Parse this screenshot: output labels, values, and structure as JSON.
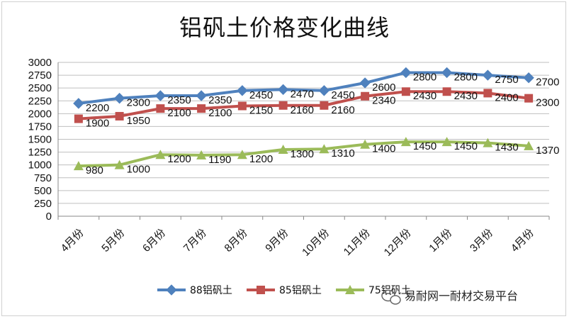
{
  "chart_data": {
    "type": "line",
    "title": "铝矾土价格变化曲线",
    "xlabel": "",
    "ylabel": "",
    "categories": [
      "4月份",
      "5月份",
      "6月份",
      "7月份",
      "8月份",
      "9月份",
      "10月份",
      "11月份",
      "12月份",
      "1月份",
      "3月份",
      "4月份"
    ],
    "ylim": [
      0,
      3000
    ],
    "yticks": [
      0,
      250,
      500,
      750,
      1000,
      1250,
      1500,
      1750,
      2000,
      2250,
      2500,
      2750,
      3000
    ],
    "grid": true,
    "legend_position": "bottom",
    "series": [
      {
        "name": "88铝矾土",
        "color": "#4F81BD",
        "marker": "diamond",
        "values": [
          2200,
          2300,
          2350,
          2350,
          2450,
          2470,
          2450,
          2600,
          2800,
          2800,
          2750,
          2700
        ]
      },
      {
        "name": "85铝矾土",
        "color": "#C0504D",
        "marker": "square",
        "values": [
          1900,
          1950,
          2100,
          2100,
          2150,
          2160,
          2160,
          2340,
          2430,
          2430,
          2400,
          2300
        ]
      },
      {
        "name": "75铝矾土",
        "color": "#9BBB59",
        "marker": "triangle",
        "values": [
          980,
          1000,
          1200,
          1190,
          1200,
          1300,
          1310,
          1400,
          1450,
          1450,
          1430,
          1370
        ]
      }
    ]
  },
  "watermark": {
    "text": "易耐网一耐材交易平台",
    "icon": "wechat-icon"
  }
}
